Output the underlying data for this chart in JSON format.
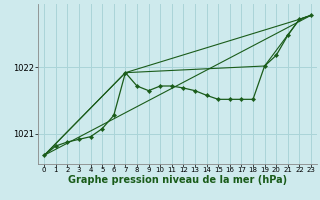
{
  "background_color": "#ceeaed",
  "grid_color": "#aad4d8",
  "line_color": "#1a5c1a",
  "xlabel": "Graphe pression niveau de la mer (hPa)",
  "xlabel_fontsize": 7,
  "ylabel_ticks": [
    1021,
    1022
  ],
  "xlim": [
    -0.5,
    23.5
  ],
  "ylim": [
    1020.55,
    1022.95
  ],
  "xticks": [
    0,
    1,
    2,
    3,
    4,
    5,
    6,
    7,
    8,
    9,
    10,
    11,
    12,
    13,
    14,
    15,
    16,
    17,
    18,
    19,
    20,
    21,
    22,
    23
  ],
  "series_main": {
    "x": [
      0,
      1,
      2,
      3,
      4,
      5,
      6,
      7,
      8,
      9,
      10,
      11,
      12,
      13,
      14,
      15,
      16,
      17,
      18,
      19,
      20,
      21,
      22,
      23
    ],
    "y": [
      1020.68,
      1020.82,
      1020.88,
      1020.92,
      1020.96,
      1021.08,
      1021.28,
      1021.92,
      1021.72,
      1021.65,
      1021.72,
      1021.72,
      1021.69,
      1021.65,
      1021.58,
      1021.52,
      1021.52,
      1021.52,
      1021.52,
      1022.02,
      1022.18,
      1022.48,
      1022.72,
      1022.78
    ]
  },
  "line1": {
    "x": [
      0,
      7,
      22,
      23
    ],
    "y": [
      1020.68,
      1021.92,
      1022.72,
      1022.78
    ]
  },
  "line2": {
    "x": [
      0,
      7,
      19,
      22,
      23
    ],
    "y": [
      1020.68,
      1021.92,
      1022.02,
      1022.72,
      1022.78
    ]
  },
  "line3": {
    "x": [
      0,
      23
    ],
    "y": [
      1020.68,
      1022.78
    ]
  }
}
